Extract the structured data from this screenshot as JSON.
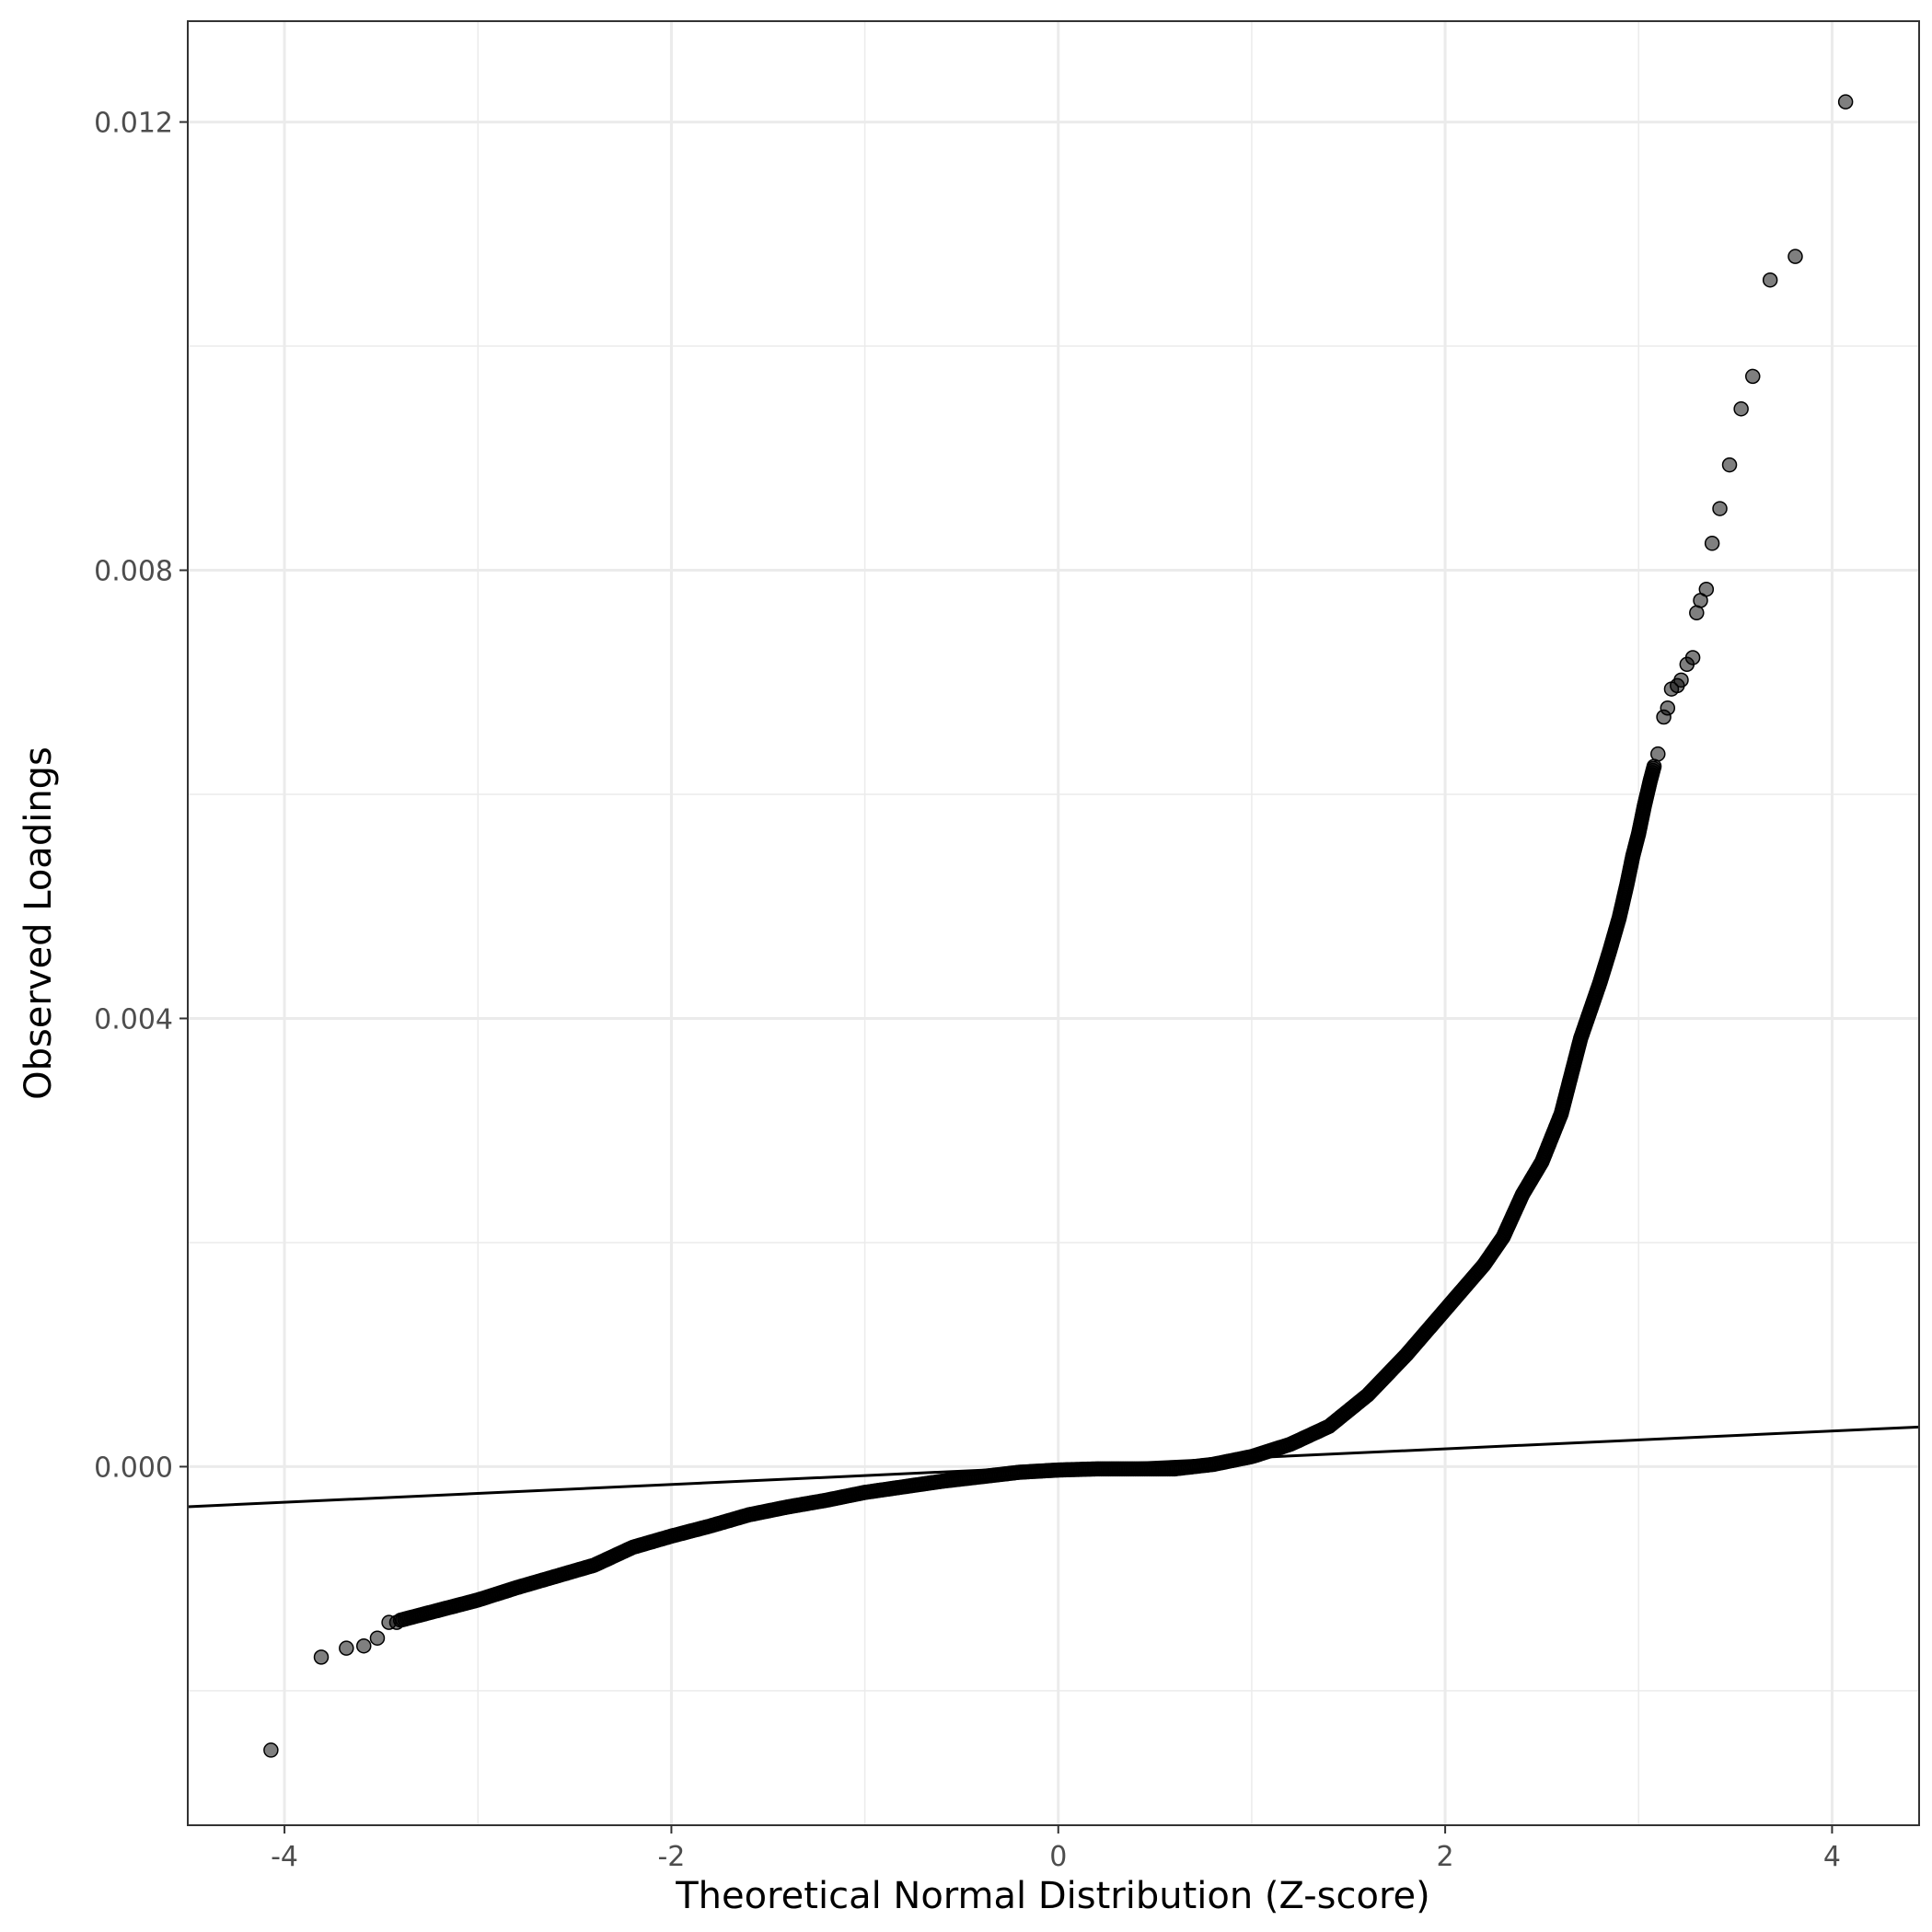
{
  "chart_data": {
    "type": "scatter",
    "title": "",
    "xlabel": "Theoretical Normal Distribution (Z-score)",
    "ylabel": "Observed Loadings",
    "xlim": [
      -4.5,
      4.45
    ],
    "ylim": [
      -0.0032,
      0.0129
    ],
    "x_ticks": [
      -4,
      -2,
      0,
      2,
      4
    ],
    "x_tick_labels": [
      "-4",
      "-2",
      "0",
      "2",
      "4"
    ],
    "y_ticks": [
      0.0,
      0.004,
      0.008,
      0.012
    ],
    "y_tick_labels": [
      "0.000",
      "0.004",
      "0.008",
      "0.012"
    ],
    "grid": true,
    "legend": "none",
    "point_color": "#000000",
    "point_opacity": 0.5,
    "reference_line": {
      "slope": 7.95e-05,
      "intercept": 0.0,
      "color": "#000000"
    },
    "outlier_points": [
      {
        "x": -4.07,
        "y": -0.00253
      },
      {
        "x": -3.81,
        "y": -0.0017
      },
      {
        "x": -3.68,
        "y": -0.00162
      },
      {
        "x": -3.59,
        "y": -0.0016
      },
      {
        "x": -3.52,
        "y": -0.00153
      },
      {
        "x": -3.46,
        "y": -0.00139
      },
      {
        "x": -3.42,
        "y": -0.00139
      },
      {
        "x": 3.1,
        "y": 0.00636
      },
      {
        "x": 3.13,
        "y": 0.00669
      },
      {
        "x": 3.15,
        "y": 0.00677
      },
      {
        "x": 3.17,
        "y": 0.00694
      },
      {
        "x": 3.2,
        "y": 0.00697
      },
      {
        "x": 3.22,
        "y": 0.00702
      },
      {
        "x": 3.25,
        "y": 0.00716
      },
      {
        "x": 3.28,
        "y": 0.00722
      },
      {
        "x": 3.3,
        "y": 0.00762
      },
      {
        "x": 3.32,
        "y": 0.00773
      },
      {
        "x": 3.35,
        "y": 0.00783
      },
      {
        "x": 3.38,
        "y": 0.00824
      },
      {
        "x": 3.42,
        "y": 0.00855
      },
      {
        "x": 3.47,
        "y": 0.00894
      },
      {
        "x": 3.53,
        "y": 0.00944
      },
      {
        "x": 3.59,
        "y": 0.00973
      },
      {
        "x": 3.68,
        "y": 0.01059
      },
      {
        "x": 3.81,
        "y": 0.0108
      },
      {
        "x": 4.07,
        "y": 0.01218
      }
    ],
    "dense_curve": [
      {
        "x": -3.4,
        "y": -0.00137
      },
      {
        "x": -3.2,
        "y": -0.00128
      },
      {
        "x": -3.0,
        "y": -0.00119
      },
      {
        "x": -2.8,
        "y": -0.00108
      },
      {
        "x": -2.6,
        "y": -0.00098
      },
      {
        "x": -2.4,
        "y": -0.00088
      },
      {
        "x": -2.2,
        "y": -0.00072
      },
      {
        "x": -2.0,
        "y": -0.00062
      },
      {
        "x": -1.8,
        "y": -0.00053
      },
      {
        "x": -1.6,
        "y": -0.00043
      },
      {
        "x": -1.4,
        "y": -0.00036
      },
      {
        "x": -1.2,
        "y": -0.0003
      },
      {
        "x": -1.0,
        "y": -0.00023
      },
      {
        "x": -0.8,
        "y": -0.00018
      },
      {
        "x": -0.6,
        "y": -0.00013
      },
      {
        "x": -0.4,
        "y": -9e-05
      },
      {
        "x": -0.2,
        "y": -5e-05
      },
      {
        "x": 0.0,
        "y": -3e-05
      },
      {
        "x": 0.2,
        "y": -2e-05
      },
      {
        "x": 0.4,
        "y": -2e-05
      },
      {
        "x": 0.6,
        "y": -2e-05
      },
      {
        "x": 0.8,
        "y": 2e-05
      },
      {
        "x": 1.0,
        "y": 9e-05
      },
      {
        "x": 1.2,
        "y": 0.0002
      },
      {
        "x": 1.4,
        "y": 0.00036
      },
      {
        "x": 1.6,
        "y": 0.00064
      },
      {
        "x": 1.8,
        "y": 0.001
      },
      {
        "x": 2.0,
        "y": 0.0014
      },
      {
        "x": 2.2,
        "y": 0.0018
      },
      {
        "x": 2.3,
        "y": 0.00205
      },
      {
        "x": 2.4,
        "y": 0.00243
      },
      {
        "x": 2.5,
        "y": 0.00272
      },
      {
        "x": 2.6,
        "y": 0.00315
      },
      {
        "x": 2.7,
        "y": 0.00382
      },
      {
        "x": 2.8,
        "y": 0.00432
      },
      {
        "x": 2.85,
        "y": 0.0046
      },
      {
        "x": 2.9,
        "y": 0.0049
      },
      {
        "x": 2.94,
        "y": 0.0052
      },
      {
        "x": 2.97,
        "y": 0.00545
      },
      {
        "x": 3.0,
        "y": 0.00565
      },
      {
        "x": 3.03,
        "y": 0.0059
      },
      {
        "x": 3.06,
        "y": 0.00612
      },
      {
        "x": 3.08,
        "y": 0.00625
      }
    ]
  }
}
